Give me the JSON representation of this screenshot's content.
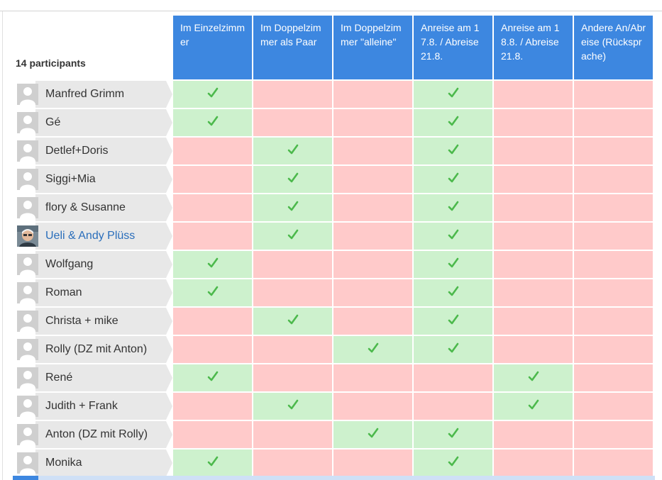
{
  "participants_count": "14 participants",
  "columns": [
    "Im Einzelzimmer",
    "Im Doppelzimmer als Paar",
    "Im Doppelzimmer \"alleine\"",
    "Anreise am 17.8. / Abreise 21.8.",
    "Anreise am 18.8. / Abreise 21.8.",
    "Andere An/Abreise (Rücksprache)"
  ],
  "participants": [
    {
      "name": "Manfred Grimm",
      "photo": false,
      "votes": [
        1,
        0,
        0,
        1,
        0,
        0
      ]
    },
    {
      "name": "Gé",
      "photo": false,
      "votes": [
        1,
        0,
        0,
        1,
        0,
        0
      ]
    },
    {
      "name": "Detlef+Doris",
      "photo": false,
      "votes": [
        0,
        1,
        0,
        1,
        0,
        0
      ]
    },
    {
      "name": "Siggi+Mia",
      "photo": false,
      "votes": [
        0,
        1,
        0,
        1,
        0,
        0
      ]
    },
    {
      "name": "flory & Susanne",
      "photo": false,
      "votes": [
        0,
        1,
        0,
        1,
        0,
        0
      ]
    },
    {
      "name": "Ueli & Andy Plüss",
      "photo": true,
      "link": true,
      "votes": [
        0,
        1,
        0,
        1,
        0,
        0
      ]
    },
    {
      "name": "Wolfgang",
      "photo": false,
      "votes": [
        1,
        0,
        0,
        1,
        0,
        0
      ]
    },
    {
      "name": "Roman",
      "photo": false,
      "votes": [
        1,
        0,
        0,
        1,
        0,
        0
      ]
    },
    {
      "name": "Christa + mike",
      "photo": false,
      "votes": [
        0,
        1,
        0,
        1,
        0,
        0
      ]
    },
    {
      "name": "Rolly (DZ mit Anton)",
      "photo": false,
      "votes": [
        0,
        0,
        1,
        1,
        0,
        0
      ]
    },
    {
      "name": "René",
      "photo": false,
      "votes": [
        1,
        0,
        0,
        0,
        1,
        0
      ]
    },
    {
      "name": "Judith + Frank",
      "photo": false,
      "votes": [
        0,
        1,
        0,
        0,
        1,
        0
      ]
    },
    {
      "name": "Anton (DZ mit Rolly)",
      "photo": false,
      "votes": [
        0,
        0,
        1,
        1,
        0,
        0
      ]
    },
    {
      "name": "Monika",
      "photo": false,
      "votes": [
        1,
        0,
        0,
        1,
        0,
        0
      ]
    }
  ],
  "colors": {
    "header": "#3d87e0",
    "yes": "#cdf1cd",
    "no": "#ffcaca",
    "check": "#4cb94c",
    "link": "#2a6ebb"
  },
  "icons": {
    "avatar": "person-silhouette-icon",
    "vote": "checkmark-icon"
  }
}
